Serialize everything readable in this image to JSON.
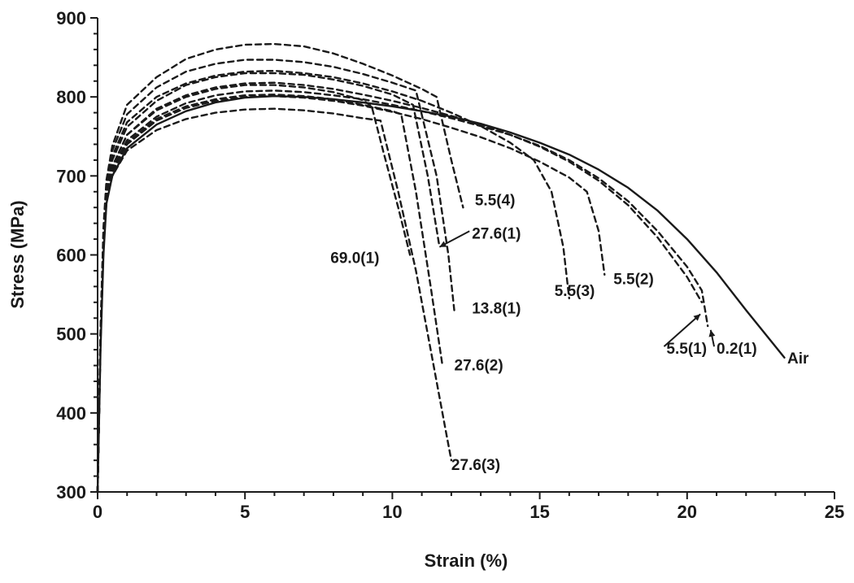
{
  "chart_data": {
    "type": "line",
    "title": "",
    "xlabel": "Strain (%)",
    "ylabel": "Stress (MPa)",
    "xlim": [
      0,
      25
    ],
    "ylim": [
      300,
      900
    ],
    "xticks": [
      0,
      5,
      10,
      15,
      20,
      25
    ],
    "yticks": [
      300,
      400,
      500,
      600,
      700,
      800,
      900
    ],
    "grid": false,
    "legend": "none",
    "series": [
      {
        "name": "Air",
        "style": "solid",
        "x": [
          0,
          0.1,
          0.2,
          0.3,
          0.5,
          1,
          2,
          3,
          4,
          5,
          6,
          7,
          8,
          9,
          10,
          11,
          12,
          13,
          14,
          15,
          16,
          17,
          18,
          19,
          20,
          21,
          22,
          23.3
        ],
        "y": [
          300,
          480,
          600,
          665,
          700,
          735,
          765,
          782,
          793,
          799,
          801,
          800,
          797,
          793,
          788,
          782,
          775,
          766,
          755,
          742,
          727,
          708,
          685,
          656,
          620,
          578,
          530,
          470
        ]
      },
      {
        "name": "0.2(1)",
        "style": "dashed",
        "x": [
          0,
          0.1,
          0.2,
          0.3,
          0.5,
          1,
          2,
          3,
          4,
          5,
          6,
          7,
          8,
          9,
          10,
          11,
          12,
          13,
          14,
          15,
          16,
          17,
          18,
          19,
          20,
          20.5,
          20.7
        ],
        "y": [
          300,
          490,
          610,
          670,
          708,
          745,
          775,
          792,
          802,
          807,
          808,
          806,
          802,
          797,
          790,
          782,
          773,
          763,
          752,
          738,
          720,
          697,
          668,
          630,
          585,
          555,
          510
        ]
      },
      {
        "name": "5.5(1)",
        "style": "dashed",
        "x": [
          0,
          0.1,
          0.2,
          0.3,
          0.5,
          1,
          2,
          3,
          4,
          5,
          6,
          7,
          8,
          9,
          10,
          11,
          12,
          13,
          14,
          15,
          16,
          17,
          18,
          19,
          20,
          20.5
        ],
        "y": [
          300,
          495,
          615,
          675,
          712,
          752,
          785,
          802,
          812,
          817,
          818,
          815,
          810,
          803,
          795,
          786,
          776,
          765,
          752,
          737,
          718,
          694,
          663,
          622,
          572,
          540
        ]
      },
      {
        "name": "5.5(2)",
        "style": "dashed",
        "x": [
          0,
          0.1,
          0.2,
          0.3,
          0.5,
          1,
          2,
          3,
          4,
          5,
          6,
          7,
          8,
          9,
          10,
          11,
          12,
          13,
          14,
          15,
          16,
          16.6,
          17.0,
          17.2
        ],
        "y": [
          300,
          495,
          612,
          672,
          705,
          740,
          770,
          786,
          795,
          800,
          801,
          799,
          795,
          789,
          781,
          772,
          761,
          749,
          735,
          718,
          698,
          680,
          630,
          575
        ]
      },
      {
        "name": "5.5(3)",
        "style": "dashed",
        "x": [
          0,
          0.1,
          0.2,
          0.3,
          0.5,
          1,
          2,
          3,
          4,
          5,
          6,
          7,
          8,
          9,
          10,
          11,
          12,
          13,
          14,
          14.8,
          15.4,
          15.8,
          16.0
        ],
        "y": [
          300,
          500,
          625,
          685,
          725,
          768,
          800,
          817,
          827,
          832,
          833,
          830,
          825,
          817,
          807,
          795,
          780,
          763,
          742,
          720,
          680,
          610,
          545
        ]
      },
      {
        "name": "5.5(4)",
        "style": "dashed",
        "x": [
          0,
          0.1,
          0.2,
          0.3,
          0.5,
          1,
          2,
          3,
          4,
          5,
          6,
          7,
          8,
          9,
          10,
          11,
          11.5,
          12.0,
          12.4
        ],
        "y": [
          300,
          505,
          635,
          695,
          738,
          790,
          825,
          848,
          860,
          866,
          867,
          864,
          855,
          842,
          827,
          810,
          800,
          720,
          660
        ]
      },
      {
        "name": "13.8(1)",
        "style": "dashed",
        "x": [
          0,
          0.1,
          0.2,
          0.3,
          0.5,
          1,
          2,
          3,
          4,
          5,
          6,
          7,
          8,
          9,
          10,
          10.8,
          11.5,
          11.9,
          12.1
        ],
        "y": [
          300,
          500,
          628,
          690,
          732,
          778,
          812,
          832,
          842,
          847,
          847,
          844,
          838,
          829,
          818,
          808,
          700,
          600,
          530
        ]
      },
      {
        "name": "27.6(1)",
        "style": "dashed",
        "x": [
          0,
          0.1,
          0.2,
          0.3,
          0.5,
          1,
          2,
          3,
          4,
          5,
          6,
          7,
          8,
          9,
          10,
          10.7,
          11.2,
          11.6
        ],
        "y": [
          300,
          498,
          622,
          682,
          720,
          762,
          795,
          815,
          825,
          830,
          830,
          828,
          822,
          814,
          803,
          790,
          700,
          610
        ]
      },
      {
        "name": "27.6(2)",
        "style": "dashed",
        "x": [
          0,
          0.1,
          0.2,
          0.3,
          0.5,
          1,
          2,
          3,
          4,
          5,
          6,
          7,
          8,
          9,
          10,
          10.3,
          10.8,
          11.3,
          11.7
        ],
        "y": [
          300,
          494,
          612,
          672,
          705,
          742,
          772,
          788,
          797,
          802,
          803,
          801,
          797,
          790,
          782,
          778,
          680,
          560,
          460
        ]
      },
      {
        "name": "27.6(3)",
        "style": "dashed",
        "x": [
          0,
          0.1,
          0.2,
          0.3,
          0.5,
          1,
          2,
          3,
          4,
          5,
          6,
          7,
          8,
          9,
          9.6,
          10.2,
          10.8,
          11.3,
          11.8,
          12.0
        ],
        "y": [
          300,
          492,
          608,
          668,
          700,
          732,
          758,
          772,
          780,
          784,
          785,
          783,
          779,
          773,
          770,
          680,
          580,
          480,
          380,
          340
        ]
      },
      {
        "name": "69.0(1)",
        "style": "dashed",
        "x": [
          0,
          0.1,
          0.2,
          0.3,
          0.5,
          1,
          2,
          3,
          4,
          5,
          6,
          7,
          8,
          9,
          9.3,
          9.7,
          10.2,
          10.6
        ],
        "y": [
          300,
          497,
          618,
          676,
          712,
          752,
          783,
          800,
          810,
          815,
          815,
          812,
          806,
          796,
          788,
          730,
          660,
          600
        ]
      }
    ],
    "annotations": [
      {
        "text": "Air",
        "x": 23.4,
        "y": 470,
        "arrow": false
      },
      {
        "text": "0.2(1)",
        "x": 21.0,
        "y": 482,
        "arrow": true,
        "arrow_to": [
          20.8,
          505
        ]
      },
      {
        "text": "5.5(1)",
        "x": 19.3,
        "y": 482,
        "arrow": true,
        "arrow_to": [
          20.45,
          525
        ]
      },
      {
        "text": "5.5(2)",
        "x": 17.5,
        "y": 570,
        "arrow": false
      },
      {
        "text": "5.5(3)",
        "x": 15.5,
        "y": 555,
        "arrow": false
      },
      {
        "text": "5.5(4)",
        "x": 12.8,
        "y": 670,
        "arrow": false
      },
      {
        "text": "13.8(1)",
        "x": 12.7,
        "y": 533,
        "arrow": false
      },
      {
        "text": "27.6(1)",
        "x": 12.7,
        "y": 628,
        "arrow": true,
        "arrow_to": [
          11.6,
          610
        ]
      },
      {
        "text": "27.6(2)",
        "x": 12.1,
        "y": 461,
        "arrow": false
      },
      {
        "text": "27.6(3)",
        "x": 12.0,
        "y": 335,
        "arrow": false
      },
      {
        "text": "69.0(1)",
        "x": 7.9,
        "y": 597,
        "arrow": false
      }
    ]
  }
}
